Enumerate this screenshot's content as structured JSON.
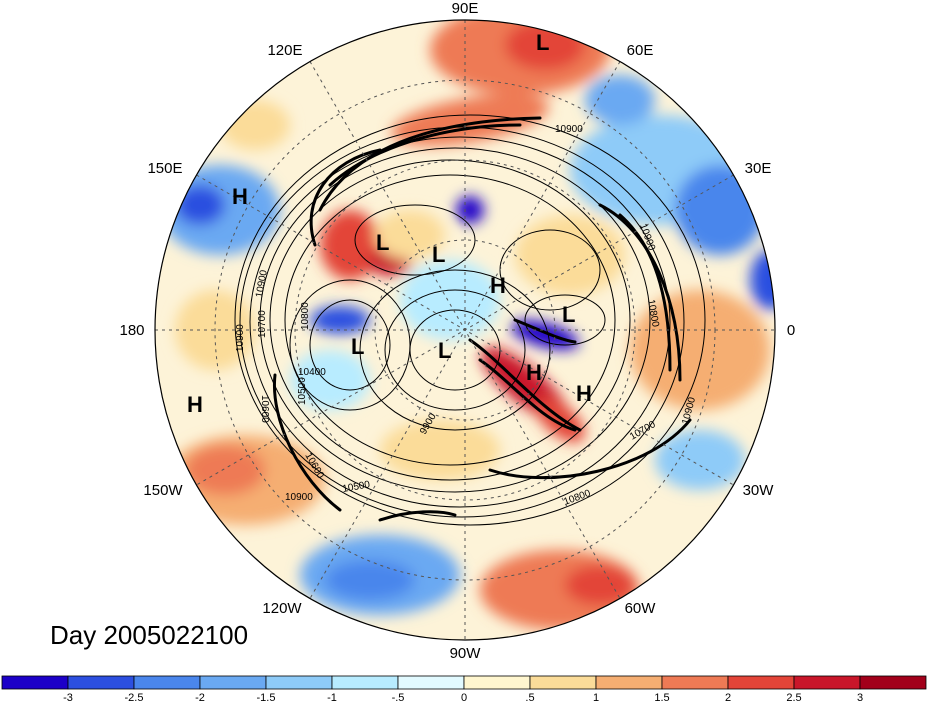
{
  "title": "Day 2005022100",
  "longitude_labels": [
    "90E",
    "60E",
    "30E",
    "0",
    "30W",
    "60W",
    "90W",
    "120W",
    "150W",
    "180",
    "150E",
    "120E"
  ],
  "pressure_centers": [
    "L",
    "H",
    "L",
    "L",
    "H",
    "L",
    "L",
    "L",
    "H",
    "H",
    "H"
  ],
  "contour_labels": [
    "10900",
    "10900",
    "10800",
    "10900",
    "10700",
    "10600",
    "10500",
    "10400",
    "9900",
    "10600",
    "10700",
    "10800",
    "10900",
    "10900",
    "10500",
    "10800",
    "10900"
  ],
  "colorbar": {
    "ticks": [
      "-3",
      "-2.5",
      "-2",
      "-1.5",
      "-1",
      "-.5",
      "0",
      ".5",
      "1",
      "1.5",
      "2",
      "2.5",
      "3"
    ],
    "colors": [
      "#1c00c8",
      "#2c4fe0",
      "#4a86ec",
      "#6aa9f2",
      "#8ecbf8",
      "#b8ecff",
      "#e2faff",
      "#fff6cf",
      "#fbdc99",
      "#f5ae72",
      "#ee7a55",
      "#e34438",
      "#c9162a",
      "#a2001a"
    ]
  },
  "colors": {
    "ocean_land_neutral": "#fdf3d8",
    "contour": "#000000",
    "grid": "#555555"
  }
}
